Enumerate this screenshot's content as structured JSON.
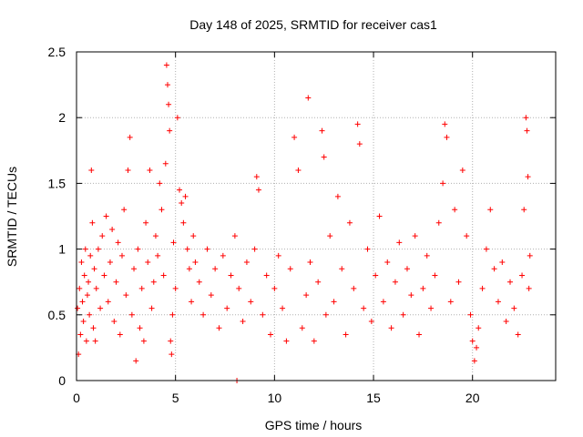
{
  "chart_data": {
    "type": "scatter",
    "title": "Day 148 of 2025, SRMTID for receiver cas1",
    "xlabel": "GPS time / hours",
    "ylabel": "SRMTID / TECUs",
    "xlim": [
      0,
      24.2
    ],
    "ylim": [
      0,
      2.5
    ],
    "xticks": [
      0,
      5,
      10,
      15,
      20
    ],
    "xtick_labels": [
      "0",
      "5",
      "10",
      "15",
      "20"
    ],
    "yticks": [
      0,
      0.5,
      1,
      1.5,
      2,
      2.5
    ],
    "ytick_labels": [
      "0",
      "0.5",
      "1",
      "1.5",
      "2",
      "2.5"
    ],
    "grid": true,
    "marker": "+",
    "color": "#ff0000",
    "series": [
      {
        "name": "SRMTID",
        "points": [
          [
            0.05,
            0.55
          ],
          [
            0.1,
            0.2
          ],
          [
            0.15,
            0.7
          ],
          [
            0.2,
            0.35
          ],
          [
            0.25,
            0.9
          ],
          [
            0.3,
            0.6
          ],
          [
            0.35,
            0.45
          ],
          [
            0.4,
            0.8
          ],
          [
            0.45,
            1.0
          ],
          [
            0.5,
            0.3
          ],
          [
            0.55,
            0.65
          ],
          [
            0.6,
            0.75
          ],
          [
            0.65,
            0.5
          ],
          [
            0.7,
            0.95
          ],
          [
            0.75,
            1.6
          ],
          [
            0.8,
            1.2
          ],
          [
            0.85,
            0.4
          ],
          [
            0.9,
            0.85
          ],
          [
            0.95,
            0.3
          ],
          [
            1.0,
            0.7
          ],
          [
            1.1,
            1.0
          ],
          [
            1.2,
            0.55
          ],
          [
            1.3,
            1.1
          ],
          [
            1.4,
            0.8
          ],
          [
            1.5,
            1.25
          ],
          [
            1.6,
            0.6
          ],
          [
            1.7,
            0.9
          ],
          [
            1.8,
            1.15
          ],
          [
            1.9,
            0.45
          ],
          [
            2.0,
            0.75
          ],
          [
            2.1,
            1.05
          ],
          [
            2.2,
            0.35
          ],
          [
            2.3,
            0.95
          ],
          [
            2.4,
            1.3
          ],
          [
            2.5,
            0.65
          ],
          [
            2.6,
            1.6
          ],
          [
            2.7,
            1.85
          ],
          [
            2.8,
            0.5
          ],
          [
            2.9,
            0.85
          ],
          [
            3.0,
            0.15
          ],
          [
            3.1,
            1.0
          ],
          [
            3.2,
            0.4
          ],
          [
            3.3,
            0.7
          ],
          [
            3.4,
            0.3
          ],
          [
            3.5,
            1.2
          ],
          [
            3.6,
            0.9
          ],
          [
            3.7,
            1.6
          ],
          [
            3.8,
            0.55
          ],
          [
            3.9,
            0.75
          ],
          [
            4.0,
            1.1
          ],
          [
            4.1,
            0.95
          ],
          [
            4.2,
            1.5
          ],
          [
            4.3,
            1.3
          ],
          [
            4.4,
            0.8
          ],
          [
            4.5,
            1.65
          ],
          [
            4.55,
            2.4
          ],
          [
            4.6,
            2.25
          ],
          [
            4.65,
            2.1
          ],
          [
            4.7,
            1.9
          ],
          [
            4.75,
            0.3
          ],
          [
            4.8,
            0.2
          ],
          [
            4.85,
            0.5
          ],
          [
            4.9,
            1.05
          ],
          [
            5.0,
            0.7
          ],
          [
            5.1,
            2.0
          ],
          [
            5.2,
            1.45
          ],
          [
            5.3,
            1.35
          ],
          [
            5.4,
            1.2
          ],
          [
            5.5,
            1.4
          ],
          [
            5.6,
            1.0
          ],
          [
            5.7,
            0.85
          ],
          [
            5.8,
            0.6
          ],
          [
            5.9,
            1.1
          ],
          [
            6.0,
            0.9
          ],
          [
            6.2,
            0.75
          ],
          [
            6.4,
            0.5
          ],
          [
            6.6,
            1.0
          ],
          [
            6.8,
            0.65
          ],
          [
            7.0,
            0.85
          ],
          [
            7.2,
            0.4
          ],
          [
            7.4,
            0.95
          ],
          [
            7.6,
            0.55
          ],
          [
            7.8,
            0.8
          ],
          [
            8.0,
            1.1
          ],
          [
            8.2,
            0.7
          ],
          [
            8.4,
            0.45
          ],
          [
            8.6,
            0.9
          ],
          [
            8.8,
            0.6
          ],
          [
            9.0,
            1.0
          ],
          [
            9.1,
            1.55
          ],
          [
            9.2,
            1.45
          ],
          [
            9.4,
            0.5
          ],
          [
            9.6,
            0.8
          ],
          [
            9.8,
            0.35
          ],
          [
            10.0,
            0.7
          ],
          [
            10.2,
            0.95
          ],
          [
            10.4,
            0.55
          ],
          [
            10.6,
            0.3
          ],
          [
            10.8,
            0.85
          ],
          [
            11.0,
            1.85
          ],
          [
            11.2,
            1.6
          ],
          [
            11.4,
            0.4
          ],
          [
            11.6,
            0.65
          ],
          [
            11.7,
            2.15
          ],
          [
            11.8,
            0.9
          ],
          [
            12.0,
            0.3
          ],
          [
            12.2,
            0.75
          ],
          [
            12.4,
            1.9
          ],
          [
            12.5,
            1.7
          ],
          [
            12.6,
            0.5
          ],
          [
            12.8,
            1.1
          ],
          [
            13.0,
            0.6
          ],
          [
            13.2,
            1.4
          ],
          [
            13.4,
            0.85
          ],
          [
            13.6,
            0.35
          ],
          [
            13.8,
            1.2
          ],
          [
            14.0,
            0.7
          ],
          [
            14.2,
            1.95
          ],
          [
            14.3,
            1.8
          ],
          [
            14.5,
            0.55
          ],
          [
            14.7,
            1.0
          ],
          [
            14.9,
            0.45
          ],
          [
            15.1,
            0.8
          ],
          [
            15.3,
            1.25
          ],
          [
            15.5,
            0.6
          ],
          [
            15.7,
            0.9
          ],
          [
            15.9,
            0.4
          ],
          [
            16.1,
            0.75
          ],
          [
            16.3,
            1.05
          ],
          [
            16.5,
            0.5
          ],
          [
            16.7,
            0.85
          ],
          [
            16.9,
            0.65
          ],
          [
            17.1,
            1.1
          ],
          [
            17.3,
            0.35
          ],
          [
            17.5,
            0.7
          ],
          [
            17.7,
            0.95
          ],
          [
            17.9,
            0.55
          ],
          [
            18.1,
            0.8
          ],
          [
            18.3,
            1.2
          ],
          [
            18.5,
            1.5
          ],
          [
            18.6,
            1.95
          ],
          [
            18.7,
            1.85
          ],
          [
            18.9,
            0.6
          ],
          [
            19.1,
            1.3
          ],
          [
            19.3,
            0.75
          ],
          [
            19.5,
            1.6
          ],
          [
            19.7,
            1.1
          ],
          [
            19.9,
            0.5
          ],
          [
            20.0,
            0.3
          ],
          [
            20.1,
            0.15
          ],
          [
            20.2,
            0.25
          ],
          [
            20.3,
            0.4
          ],
          [
            20.5,
            0.7
          ],
          [
            20.7,
            1.0
          ],
          [
            20.9,
            1.3
          ],
          [
            21.1,
            0.85
          ],
          [
            21.3,
            0.6
          ],
          [
            21.5,
            0.9
          ],
          [
            21.7,
            0.45
          ],
          [
            21.9,
            0.75
          ],
          [
            22.1,
            0.55
          ],
          [
            22.3,
            0.35
          ],
          [
            22.5,
            0.8
          ],
          [
            22.6,
            1.3
          ],
          [
            22.7,
            2.0
          ],
          [
            22.75,
            1.9
          ],
          [
            22.8,
            1.55
          ],
          [
            22.85,
            0.7
          ],
          [
            22.9,
            0.95
          ],
          [
            8.1,
            0.0
          ]
        ]
      }
    ]
  }
}
